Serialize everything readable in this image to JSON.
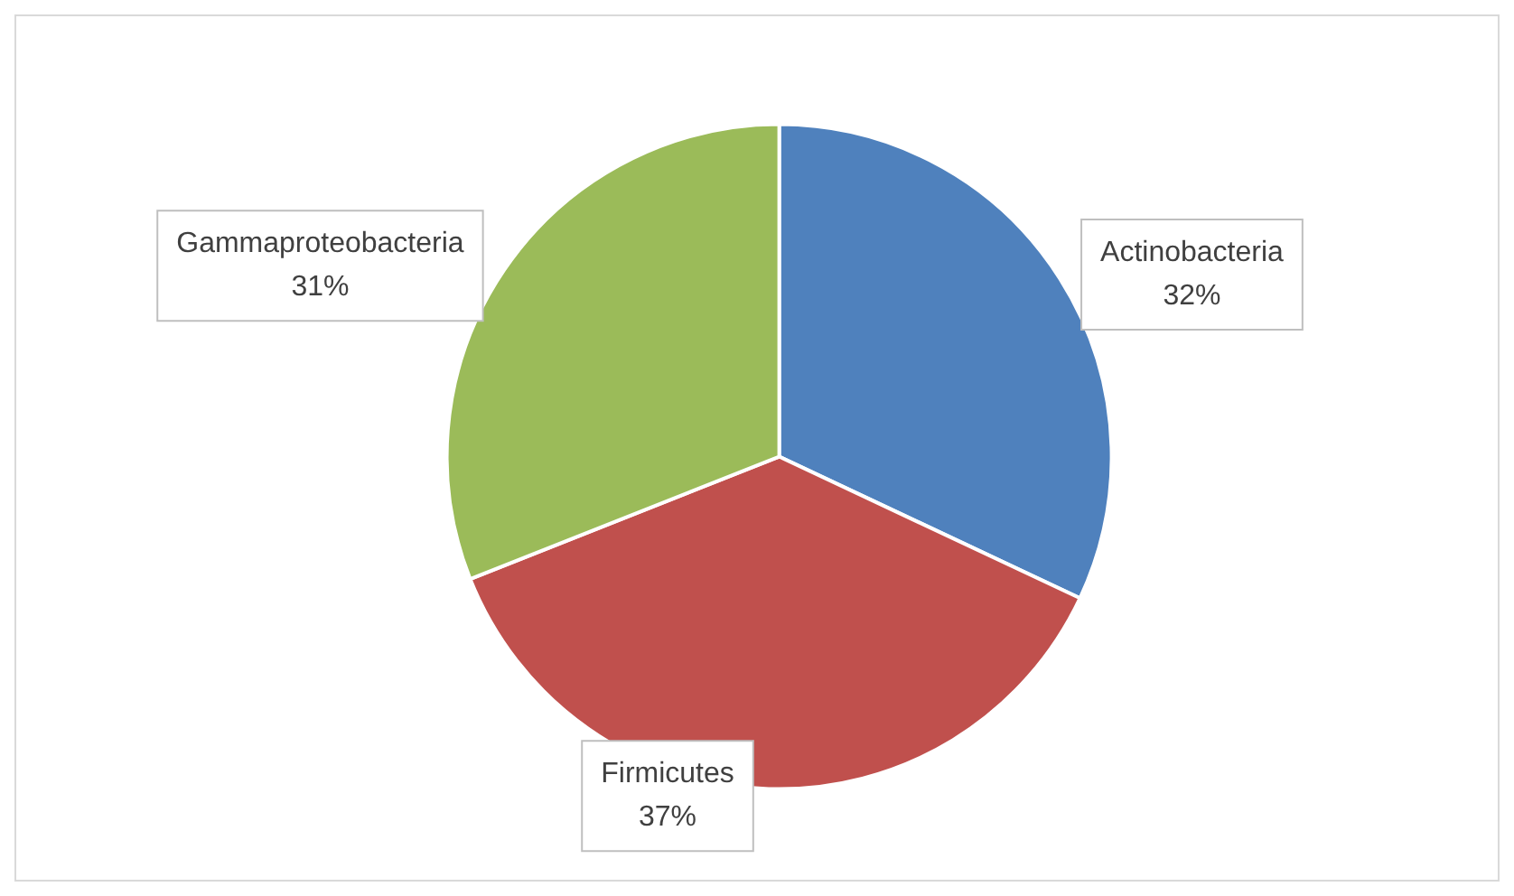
{
  "chart_data": {
    "type": "pie",
    "categories": [
      "Actinobacteria",
      "Firmicutes",
      "Gammaproteobacteria"
    ],
    "values": [
      32,
      37,
      31
    ],
    "colors": [
      "#4f81bd",
      "#c0504d",
      "#9bbb59"
    ],
    "value_labels": [
      "32%",
      "37%",
      "31%"
    ]
  }
}
